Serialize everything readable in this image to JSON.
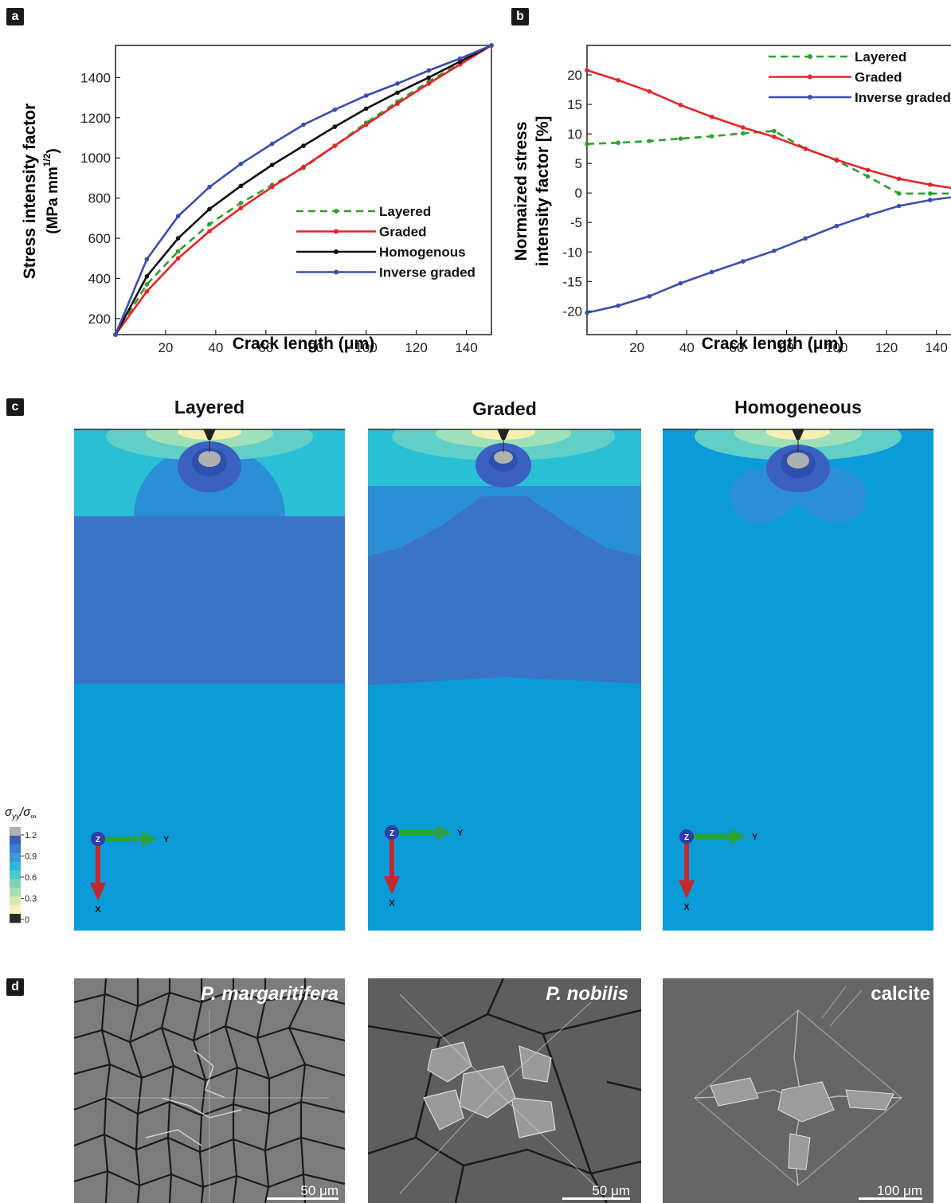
{
  "panel_labels": {
    "a": "a",
    "b": "b",
    "c": "c",
    "d": "d"
  },
  "chart_data": [
    {
      "type": "line",
      "panel": "a",
      "xlabel": "Crack length (μm)",
      "ylabel_line1": "Stress intensity factor",
      "ylabel_line2": "(MPa mm",
      "ylabel_exp": "1/2",
      "ylabel_close": ")",
      "xlim": [
        0,
        150
      ],
      "ylim": [
        120,
        1560
      ],
      "xticks": [
        20,
        40,
        60,
        80,
        100,
        120,
        140
      ],
      "yticks": [
        200,
        400,
        600,
        800,
        1000,
        1200,
        1400
      ],
      "legend_position": "bottom-right",
      "series": [
        {
          "name": "Layered",
          "color": "#2ca02c",
          "dash": true,
          "x": [
            0,
            12.5,
            25,
            37.5,
            50,
            62.5,
            75,
            87.5,
            100,
            112.5,
            125,
            137.5,
            150
          ],
          "y": [
            120,
            370,
            535,
            670,
            775,
            865,
            950,
            1060,
            1175,
            1280,
            1380,
            1470,
            1560
          ]
        },
        {
          "name": "Graded",
          "color": "#e8232a",
          "dash": false,
          "x": [
            0,
            12.5,
            25,
            37.5,
            50,
            62.5,
            75,
            87.5,
            100,
            112.5,
            125,
            137.5,
            150
          ],
          "y": [
            120,
            335,
            500,
            635,
            750,
            855,
            955,
            1060,
            1165,
            1270,
            1370,
            1465,
            1560
          ]
        },
        {
          "name": "Homogenous",
          "color": "#111111",
          "dash": false,
          "x": [
            0,
            12.5,
            25,
            37.5,
            50,
            62.5,
            75,
            87.5,
            100,
            112.5,
            125,
            137.5,
            150
          ],
          "y": [
            120,
            410,
            600,
            745,
            860,
            965,
            1060,
            1155,
            1245,
            1325,
            1400,
            1480,
            1560
          ]
        },
        {
          "name": "Inverse graded",
          "color": "#3a4fb0",
          "dash": false,
          "x": [
            0,
            12.5,
            25,
            37.5,
            50,
            62.5,
            75,
            87.5,
            100,
            112.5,
            125,
            137.5,
            150
          ],
          "y": [
            120,
            495,
            710,
            855,
            970,
            1070,
            1165,
            1240,
            1310,
            1370,
            1435,
            1495,
            1560
          ]
        }
      ]
    },
    {
      "type": "line",
      "panel": "b",
      "xlabel": "Crack length (μm)",
      "ylabel_line1": "Normaized stress",
      "ylabel_line2": "intensity factor [%]",
      "xlim": [
        0,
        150
      ],
      "ylim": [
        -24,
        25
      ],
      "xticks": [
        20,
        40,
        60,
        80,
        100,
        120,
        140
      ],
      "yticks": [
        20,
        15,
        10,
        5,
        0,
        -5,
        -10,
        -15,
        -20
      ],
      "legend_position": "top-right",
      "series": [
        {
          "name": "Layered",
          "color": "#2ca02c",
          "dash": true,
          "x": [
            0,
            12.5,
            25,
            37.5,
            50,
            62.5,
            75,
            87.5,
            100,
            112.5,
            125,
            137.5,
            150
          ],
          "y": [
            8.3,
            8.5,
            8.8,
            9.2,
            9.6,
            10.1,
            10.5,
            7.5,
            5.5,
            2.8,
            -0.1,
            -0.1,
            -0.1
          ]
        },
        {
          "name": "Graded",
          "color": "#e8232a",
          "dash": false,
          "x": [
            0,
            12.5,
            25,
            37.5,
            50,
            62.5,
            75,
            87.5,
            100,
            112.5,
            125,
            137.5,
            150
          ],
          "y": [
            20.8,
            19.1,
            17.2,
            14.9,
            12.9,
            11.1,
            9.5,
            7.5,
            5.6,
            3.9,
            2.4,
            1.4,
            0.6
          ]
        },
        {
          "name": "Inverse graded",
          "color": "#3a4fb0",
          "dash": false,
          "x": [
            0,
            12.5,
            25,
            37.5,
            50,
            62.5,
            75,
            87.5,
            100,
            112.5,
            125,
            137.5,
            150
          ],
          "y": [
            -20.3,
            -19.1,
            -17.5,
            -15.3,
            -13.4,
            -11.6,
            -9.8,
            -7.7,
            -5.6,
            -3.8,
            -2.2,
            -1.2,
            -0.5
          ]
        }
      ]
    }
  ],
  "fea_panels": [
    {
      "title": "Layered",
      "axis_y": "Y",
      "axis_x": "X",
      "axis_z": "Z"
    },
    {
      "title": "Graded",
      "axis_y": "Y",
      "axis_x": "X",
      "axis_z": "Z"
    },
    {
      "title": "Homogeneous",
      "axis_y": "Y",
      "axis_x": "X",
      "axis_z": "Z"
    }
  ],
  "colorbar": {
    "label_num": "σ",
    "label_num_sub": "yy",
    "label_den": "/σ",
    "label_den_sub": "∞",
    "ticks": [
      "1.2",
      "0.9",
      "0.6",
      "0.3",
      "0"
    ],
    "colors": [
      "#b0b0b0",
      "#3a5fc0",
      "#3f7ad0",
      "#3a9ad8",
      "#2fb8d8",
      "#4fc8c8",
      "#7ad4b8",
      "#a8e0b0",
      "#d6ecb0",
      "#f6f3b8",
      "#2a2a2a"
    ]
  },
  "sem_panels": [
    {
      "label": "P. margaritifera",
      "scale": "50 μm",
      "italic": true
    },
    {
      "label": "P. nobilis",
      "scale": "50 μm",
      "italic": true
    },
    {
      "label": "calcite",
      "scale": "100 μm",
      "italic": false
    }
  ]
}
